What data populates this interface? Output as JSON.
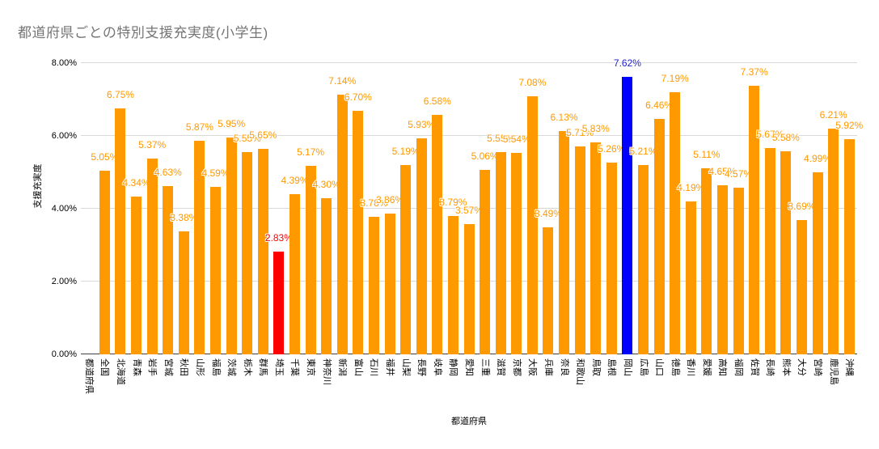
{
  "chart_data": {
    "type": "bar",
    "title": "都道府県ごとの特別支援充実度(小学生)",
    "xlabel": "都道府県",
    "ylabel": "支援充実度",
    "ylim": [
      0,
      8
    ],
    "ytick_values": [
      0,
      2,
      4,
      6,
      8
    ],
    "ytick_labels": [
      "0.00%",
      "2.00%",
      "4.00%",
      "6.00%",
      "8.00%"
    ],
    "grid": "horizontal",
    "legend": "none",
    "value_label_suffix": "%",
    "categories": [
      "都道府県",
      "全国",
      "北海道",
      "青森",
      "岩手",
      "宮城",
      "秋田",
      "山形",
      "福島",
      "茨城",
      "栃木",
      "群馬",
      "埼玉",
      "千葉",
      "東京",
      "神奈川",
      "新潟",
      "富山",
      "石川",
      "福井",
      "山梨",
      "長野",
      "岐阜",
      "静岡",
      "愛知",
      "三重",
      "滋賀",
      "京都",
      "大阪",
      "兵庫",
      "奈良",
      "和歌山",
      "鳥取",
      "島根",
      "岡山",
      "広島",
      "山口",
      "徳島",
      "香川",
      "愛媛",
      "高知",
      "福岡",
      "佐賀",
      "長崎",
      "熊本",
      "大分",
      "宮崎",
      "鹿児島",
      "沖縄"
    ],
    "values": [
      null,
      5.05,
      6.75,
      4.34,
      5.37,
      4.63,
      3.38,
      5.87,
      4.59,
      5.95,
      5.55,
      5.65,
      2.83,
      4.39,
      5.17,
      4.3,
      7.14,
      6.7,
      3.78,
      3.86,
      5.19,
      5.93,
      6.58,
      3.79,
      3.57,
      5.06,
      5.55,
      5.54,
      7.08,
      3.49,
      6.13,
      5.71,
      5.83,
      5.26,
      7.62,
      5.21,
      6.46,
      7.19,
      4.19,
      5.11,
      4.65,
      4.57,
      7.37,
      5.67,
      5.58,
      3.69,
      4.99,
      6.21,
      5.92
    ],
    "colors": {
      "bar_default": "#ff9900",
      "label_default": "#ff9900",
      "grid": "#d9d9d9",
      "axis_line": "#424242",
      "title_text": "#757575",
      "tick_text": "#000000"
    },
    "highlights": {
      "12": {
        "bar": "#ff0000",
        "label": "#ff0000",
        "category": "埼玉"
      },
      "34": {
        "bar": "#0000ff",
        "label": "#1a1acc",
        "category": "岡山"
      }
    }
  }
}
